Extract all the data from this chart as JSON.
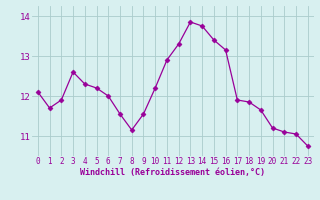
{
  "x": [
    0,
    1,
    2,
    3,
    4,
    5,
    6,
    7,
    8,
    9,
    10,
    11,
    12,
    13,
    14,
    15,
    16,
    17,
    18,
    19,
    20,
    21,
    22,
    23
  ],
  "y": [
    12.1,
    11.7,
    11.9,
    12.6,
    12.3,
    12.2,
    12.0,
    11.55,
    11.15,
    11.55,
    12.2,
    12.9,
    13.3,
    13.85,
    13.75,
    13.4,
    13.15,
    11.9,
    11.85,
    11.65,
    11.2,
    11.1,
    11.05,
    10.75
  ],
  "line_color": "#990099",
  "marker": "D",
  "marker_size": 2.5,
  "bg_color": "#d8f0f0",
  "grid_color": "#aacccc",
  "xlabel": "Windchill (Refroidissement éolien,°C)",
  "xlabel_color": "#990099",
  "tick_color": "#990099",
  "ylim": [
    10.5,
    14.25
  ],
  "xlim": [
    -0.5,
    23.5
  ],
  "yticks": [
    11,
    12,
    13,
    14
  ],
  "xticks": [
    0,
    1,
    2,
    3,
    4,
    5,
    6,
    7,
    8,
    9,
    10,
    11,
    12,
    13,
    14,
    15,
    16,
    17,
    18,
    19,
    20,
    21,
    22,
    23
  ],
  "tick_fontsize": 5.5,
  "xlabel_fontsize": 6.0,
  "ytick_fontsize": 6.5
}
